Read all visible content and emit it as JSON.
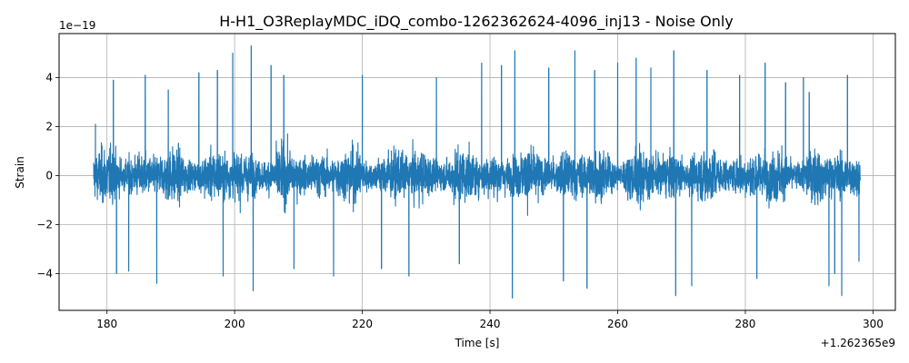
{
  "chart_data": {
    "type": "line",
    "title": "H-H1_O3ReplayMDC_iDQ_combo-1262362624-4096_inj13 - Noise Only",
    "xlabel": "Time [s]",
    "ylabel": "Strain",
    "x_offset_label": "+1.262365e9",
    "y_scale_label": "1e−19",
    "xlim": [
      172.5,
      303.5
    ],
    "ylim": [
      -5.5,
      5.8
    ],
    "x_ticks": [
      180,
      200,
      220,
      240,
      260,
      280,
      300
    ],
    "x_tick_labels": [
      "180",
      "200",
      "220",
      "240",
      "260",
      "280",
      "300"
    ],
    "y_ticks": [
      -4,
      -2,
      0,
      2,
      4
    ],
    "y_tick_labels": [
      "−4",
      "−2",
      "0",
      "2",
      "4"
    ],
    "grid": true,
    "series": [
      {
        "color": "#1f77b4",
        "x_range": [
          177.9,
          298.0
        ],
        "typical_amplitude": 2.3,
        "peaks": [
          {
            "x": 178.2,
            "y": 2.1
          },
          {
            "x": 181.0,
            "y": 3.9
          },
          {
            "x": 181.5,
            "y": -4.0
          },
          {
            "x": 183.4,
            "y": -3.9
          },
          {
            "x": 186.0,
            "y": 4.1
          },
          {
            "x": 187.8,
            "y": -4.4
          },
          {
            "x": 189.6,
            "y": 3.5
          },
          {
            "x": 194.4,
            "y": 4.2
          },
          {
            "x": 197.3,
            "y": 4.3
          },
          {
            "x": 198.2,
            "y": -4.1
          },
          {
            "x": 199.7,
            "y": 5.0
          },
          {
            "x": 202.6,
            "y": 5.3
          },
          {
            "x": 202.9,
            "y": -4.7
          },
          {
            "x": 205.7,
            "y": 4.5
          },
          {
            "x": 207.7,
            "y": 4.1
          },
          {
            "x": 209.3,
            "y": -3.8
          },
          {
            "x": 215.5,
            "y": -4.1
          },
          {
            "x": 220.0,
            "y": 4.1
          },
          {
            "x": 223.0,
            "y": -3.8
          },
          {
            "x": 227.3,
            "y": -4.1
          },
          {
            "x": 231.6,
            "y": 4.0
          },
          {
            "x": 235.2,
            "y": -3.6
          },
          {
            "x": 238.7,
            "y": 4.6
          },
          {
            "x": 241.8,
            "y": 4.5
          },
          {
            "x": 243.5,
            "y": -5.0
          },
          {
            "x": 243.9,
            "y": 5.1
          },
          {
            "x": 249.2,
            "y": 4.4
          },
          {
            "x": 251.5,
            "y": -4.3
          },
          {
            "x": 253.3,
            "y": 5.1
          },
          {
            "x": 255.2,
            "y": -4.6
          },
          {
            "x": 256.4,
            "y": 4.3
          },
          {
            "x": 260.0,
            "y": 4.6
          },
          {
            "x": 262.9,
            "y": 4.8
          },
          {
            "x": 265.2,
            "y": 4.4
          },
          {
            "x": 268.8,
            "y": 5.1
          },
          {
            "x": 269.1,
            "y": -4.9
          },
          {
            "x": 271.6,
            "y": -4.5
          },
          {
            "x": 274.0,
            "y": 4.3
          },
          {
            "x": 279.1,
            "y": 4.1
          },
          {
            "x": 281.8,
            "y": -4.2
          },
          {
            "x": 283.1,
            "y": 4.6
          },
          {
            "x": 286.3,
            "y": 3.8
          },
          {
            "x": 289.1,
            "y": 4.0
          },
          {
            "x": 290.0,
            "y": 3.4
          },
          {
            "x": 293.1,
            "y": -4.5
          },
          {
            "x": 294.0,
            "y": -4.0
          },
          {
            "x": 295.1,
            "y": -4.9
          },
          {
            "x": 296.0,
            "y": 4.1
          },
          {
            "x": 297.8,
            "y": -3.5
          }
        ]
      }
    ]
  }
}
